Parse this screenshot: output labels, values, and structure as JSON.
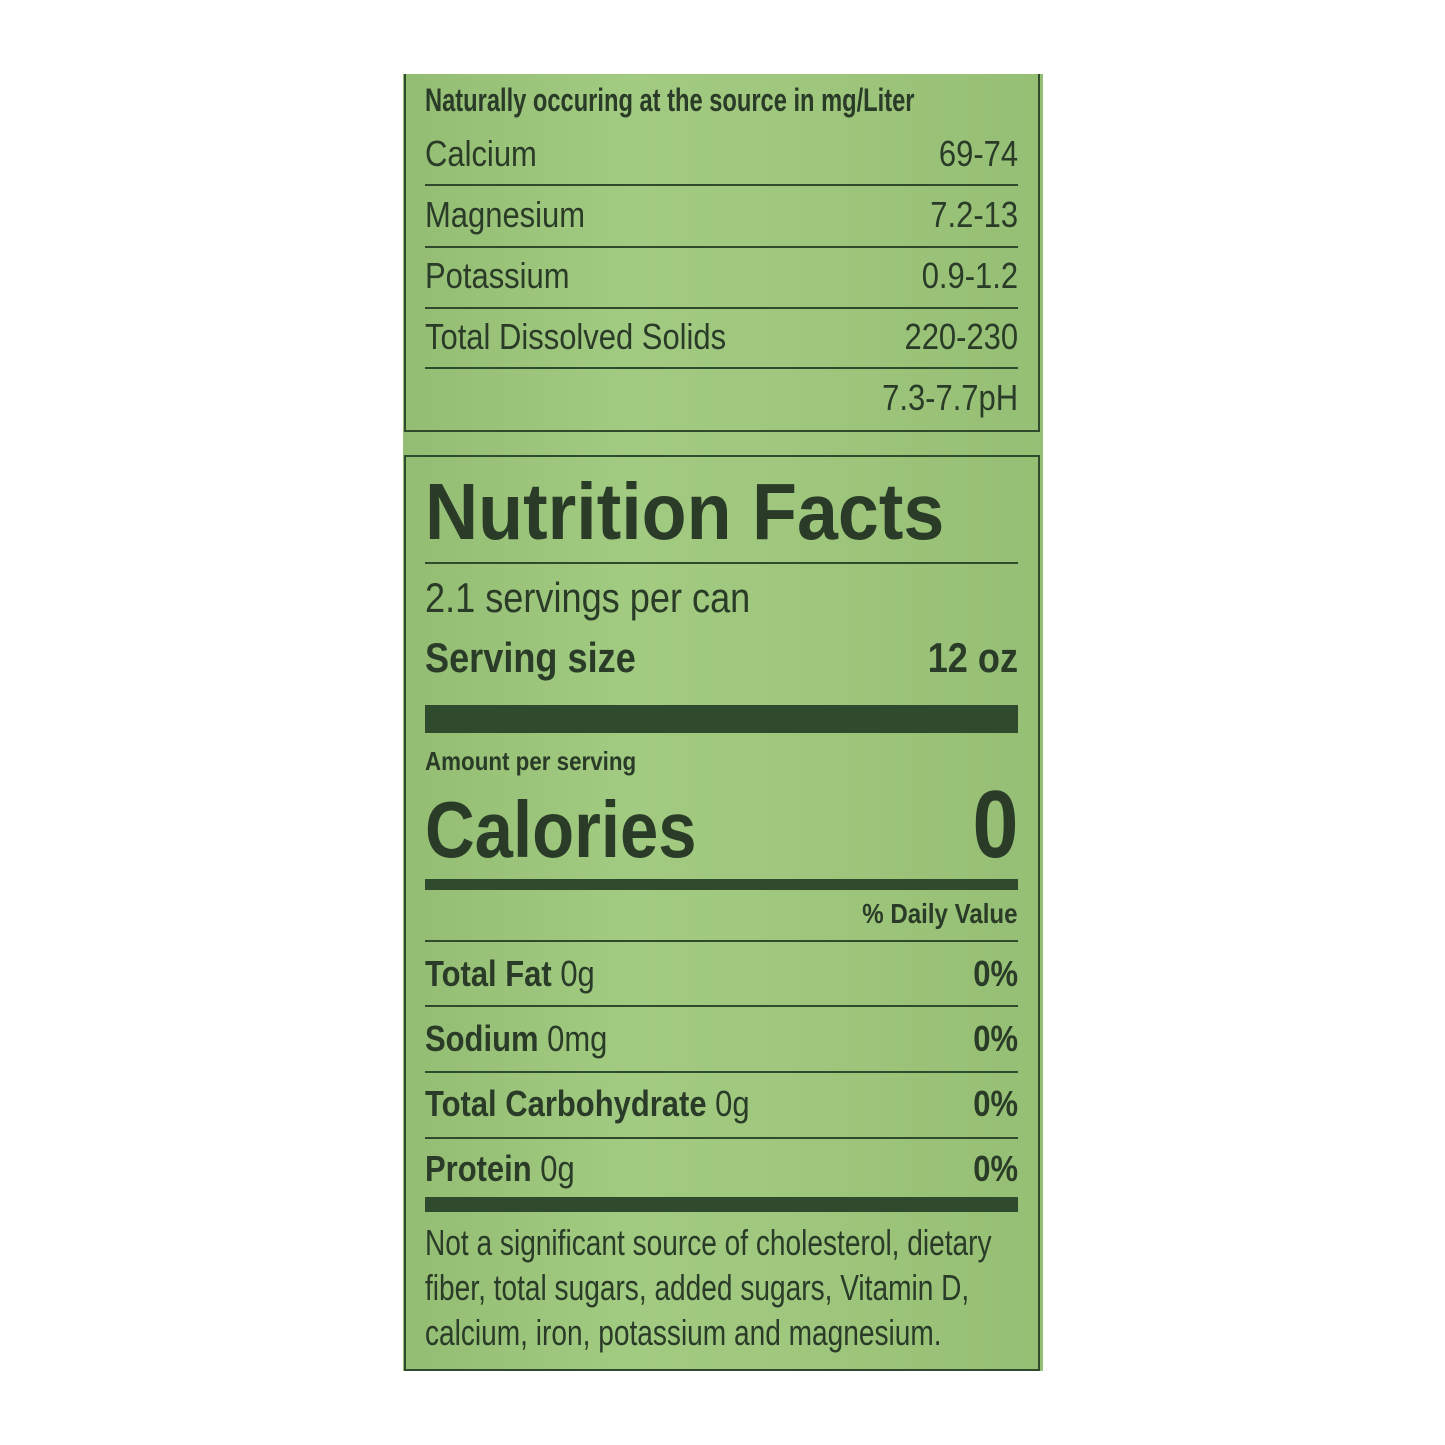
{
  "minerals": {
    "header": "Naturally occuring at the source in mg/Liter",
    "rows": [
      {
        "label": "Calcium",
        "value": "69-74"
      },
      {
        "label": "Magnesium",
        "value": "7.2-13"
      },
      {
        "label": "Potassium",
        "value": "0.9-1.2"
      },
      {
        "label": "Total Dissolved Solids",
        "value": "220-230"
      },
      {
        "label": "",
        "value": "7.3-7.7pH"
      }
    ]
  },
  "nutrition": {
    "title": "Nutrition Facts",
    "servings": "2.1 servings per can",
    "serving_size_label": "Serving size",
    "serving_size_value": "12 oz",
    "amount_per_serving": "Amount per serving",
    "calories_label": "Calories",
    "calories_value": "0",
    "daily_value_header": "% Daily Value",
    "nutrients": [
      {
        "name": "Total Fat",
        "amount": "0g",
        "dv": "0%"
      },
      {
        "name": "Sodium",
        "amount": "0mg",
        "dv": "0%"
      },
      {
        "name": "Total Carbohydrate",
        "amount": "0g",
        "dv": "0%"
      },
      {
        "name": "Protein",
        "amount": "0g",
        "dv": "0%"
      }
    ],
    "footnote": [
      "Not a significant source of cholesterol, dietary",
      "fiber, total sugars, added sugars, Vitamin D,",
      "calcium, iron, potassium and magnesium."
    ]
  },
  "colors": {
    "background": "#9cc57a",
    "ink": "#2a3b28"
  }
}
